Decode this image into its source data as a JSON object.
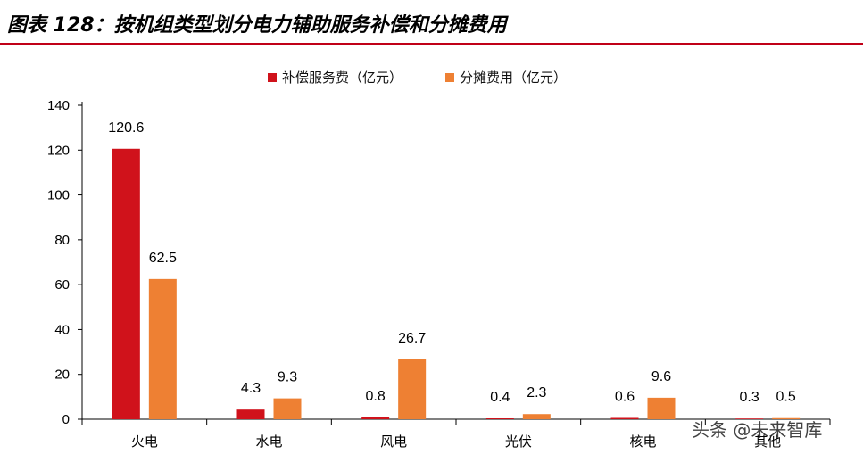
{
  "title": "图表 128：按机组类型划分电力辅助服务补偿和分摊费用",
  "watermark": "头条 @未来智库",
  "colors": {
    "accent": "#c00018",
    "series1": "#d0121b",
    "series2": "#ee8033"
  },
  "chart_data": {
    "type": "bar",
    "categories": [
      "火电",
      "水电",
      "风电",
      "光伏",
      "核电",
      "其他"
    ],
    "series": [
      {
        "name": "补偿服务费（亿元）",
        "values": [
          120.6,
          4.3,
          0.8,
          0.4,
          0.6,
          0.3
        ],
        "color": "#d0121b"
      },
      {
        "name": "分摊费用（亿元）",
        "values": [
          62.5,
          9.3,
          26.7,
          2.3,
          9.6,
          0.5
        ],
        "color": "#ee8033"
      }
    ],
    "ylim": [
      0,
      140
    ],
    "yticks": [
      0,
      20,
      40,
      60,
      80,
      100,
      120,
      140
    ],
    "grid": false,
    "legend_position": "top-center"
  }
}
